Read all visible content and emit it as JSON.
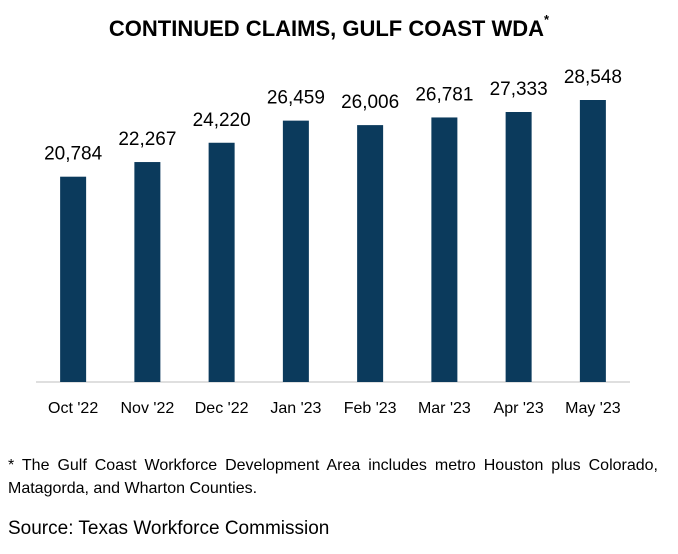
{
  "chart_data": {
    "type": "bar",
    "title": "CONTINUED CLAIMS, GULF COAST WDA",
    "title_note_mark": "*",
    "categories": [
      "Oct '22",
      "Nov '22",
      "Dec '22",
      "Jan '23",
      "Feb '23",
      "Mar '23",
      "Apr '23",
      "May '23"
    ],
    "values": [
      20784,
      22267,
      24220,
      26459,
      26006,
      26781,
      27333,
      28548
    ],
    "value_labels": [
      "20,784",
      "22,267",
      "24,220",
      "26,459",
      "26,006",
      "26,781",
      "27,333",
      "28,548"
    ],
    "color": "#0b3a5c",
    "footnote": "* The Gulf Coast Workforce Development Area includes metro Houston plus Colorado, Matagorda, and Wharton Counties.",
    "source": "Source: Texas Workforce Commission"
  }
}
